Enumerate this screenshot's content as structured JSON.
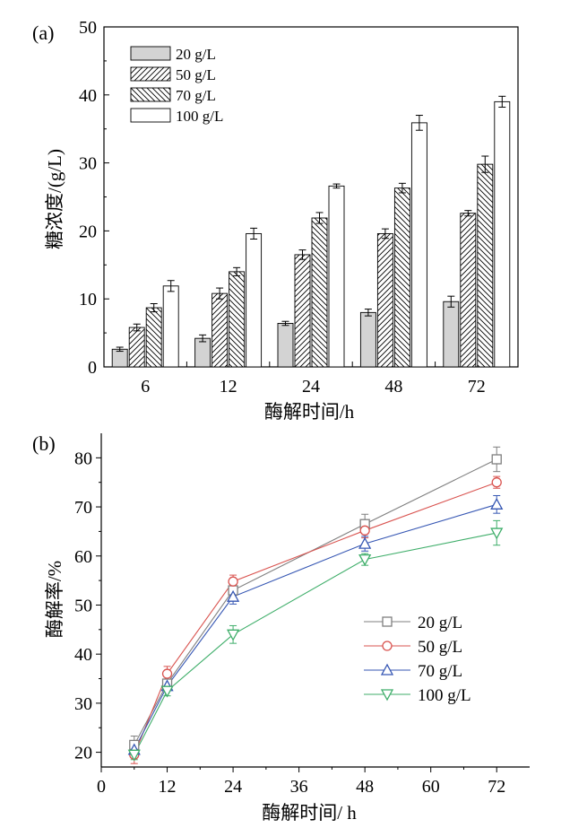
{
  "chart_data": [
    {
      "panel_label": "(a)",
      "type": "bar",
      "categories": [
        "6",
        "12",
        "24",
        "48",
        "72"
      ],
      "series": [
        {
          "name": "20 g/L",
          "values": [
            2.6,
            4.2,
            6.4,
            8.0,
            9.6
          ],
          "errors": [
            0.3,
            0.5,
            0.3,
            0.5,
            0.8
          ],
          "pattern": "gray"
        },
        {
          "name": "50 g/L",
          "values": [
            5.8,
            10.8,
            16.5,
            19.6,
            22.6
          ],
          "errors": [
            0.5,
            0.8,
            0.7,
            0.7,
            0.4
          ],
          "pattern": "hatch-right"
        },
        {
          "name": "70 g/L",
          "values": [
            8.7,
            14.0,
            21.9,
            26.3,
            29.8
          ],
          "errors": [
            0.6,
            0.6,
            0.8,
            0.7,
            1.2
          ],
          "pattern": "hatch-left"
        },
        {
          "name": "100 g/L",
          "values": [
            11.9,
            19.6,
            26.6,
            35.9,
            39.0
          ],
          "errors": [
            0.8,
            0.8,
            0.3,
            1.1,
            0.8
          ],
          "pattern": "white"
        }
      ],
      "xlabel": "酶解时间/h",
      "ylabel": "糖浓度/(g/L)",
      "ylim": [
        0,
        50
      ],
      "yticks": [
        "0",
        "10",
        "20",
        "30",
        "40",
        "50"
      ],
      "grid": false,
      "legend_position": "top-left"
    },
    {
      "panel_label": "(b)",
      "type": "line",
      "x": [
        6,
        12,
        24,
        48,
        72
      ],
      "series": [
        {
          "name": "20 g/L",
          "values": [
            21.5,
            34.0,
            53.0,
            66.5,
            79.7
          ],
          "errors": [
            1.8,
            1.3,
            1.5,
            2.0,
            2.5
          ],
          "color": "#7f7f7f",
          "marker": "square"
        },
        {
          "name": "50 g/L",
          "values": [
            19.5,
            36.0,
            54.8,
            65.2,
            75.0
          ],
          "errors": [
            1.8,
            1.5,
            1.3,
            1.5,
            1.2
          ],
          "color": "#d9534f",
          "marker": "circle"
        },
        {
          "name": "70 g/L",
          "values": [
            20.5,
            33.5,
            51.7,
            62.5,
            70.5
          ],
          "errors": [
            1.0,
            1.0,
            1.5,
            1.5,
            1.8
          ],
          "color": "#3556b3",
          "marker": "triangle-up"
        },
        {
          "name": "100 g/L",
          "values": [
            19.5,
            32.5,
            44.0,
            59.3,
            64.7
          ],
          "errors": [
            1.0,
            1.0,
            1.8,
            1.2,
            2.5
          ],
          "color": "#3fae6a",
          "marker": "triangle-down"
        }
      ],
      "xlabel": "酶解时间/ h",
      "ylabel": "酶解率/%",
      "xlim": [
        0,
        78
      ],
      "ylim": [
        17,
        85
      ],
      "xticks": [
        "0",
        "12",
        "24",
        "36",
        "48",
        "60",
        "72"
      ],
      "yticks": [
        "20",
        "30",
        "40",
        "50",
        "60",
        "70",
        "80"
      ],
      "grid": false,
      "legend_position": "right"
    }
  ]
}
